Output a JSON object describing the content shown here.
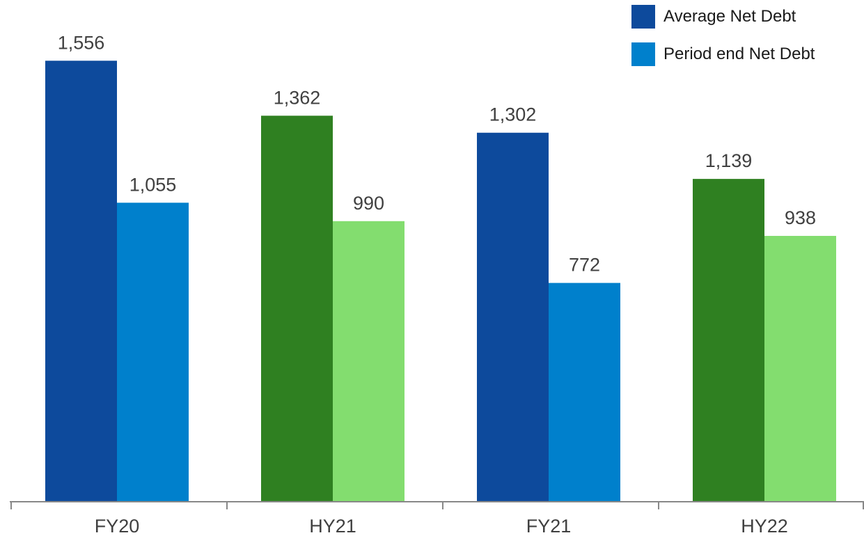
{
  "chart_data": {
    "type": "bar",
    "title": "",
    "xlabel": "",
    "ylabel": "",
    "ylim": [
      0,
      1650
    ],
    "grid": false,
    "legend_position": "top-right",
    "categories": [
      "FY20",
      "HY21",
      "FY21",
      "HY22"
    ],
    "series": [
      {
        "name": "Average Net Debt",
        "values": [
          1556,
          1362,
          1302,
          1139
        ],
        "value_labels": [
          "1,556",
          "1,362",
          "1,302",
          "1,139"
        ],
        "legend_color": "#0D4A9C",
        "bar_colors": [
          "#0D4A9C",
          "#2F8021",
          "#0D4A9C",
          "#2F8021"
        ]
      },
      {
        "name": "Period end Net Debt",
        "values": [
          1055,
          990,
          772,
          938
        ],
        "value_labels": [
          "1,055",
          "990",
          "772",
          "938"
        ],
        "legend_color": "#0080CC",
        "bar_colors": [
          "#0080CC",
          "#83DD6F",
          "#0080CC",
          "#83DD6F"
        ]
      }
    ],
    "axis_color": "#888888",
    "label_color": "#404040"
  }
}
